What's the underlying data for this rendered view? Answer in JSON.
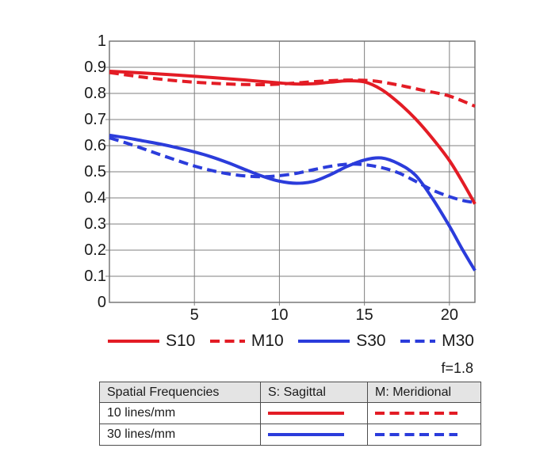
{
  "chart_data": {
    "type": "line",
    "title": "",
    "xlabel": "",
    "ylabel": "",
    "xlim": [
      0,
      21.5
    ],
    "ylim": [
      0,
      1
    ],
    "grid": true,
    "x_ticks": [
      {
        "value": 5,
        "label": "5"
      },
      {
        "value": 10,
        "label": "10"
      },
      {
        "value": 15,
        "label": "15"
      },
      {
        "value": 20,
        "label": "20"
      }
    ],
    "y_ticks": [
      {
        "value": 0,
        "label": "0"
      },
      {
        "value": 0.1,
        "label": "0.1"
      },
      {
        "value": 0.2,
        "label": "0.2"
      },
      {
        "value": 0.3,
        "label": "0.3"
      },
      {
        "value": 0.4,
        "label": "0.4"
      },
      {
        "value": 0.5,
        "label": "0.5"
      },
      {
        "value": 0.6,
        "label": "0.6"
      },
      {
        "value": 0.7,
        "label": "0.7"
      },
      {
        "value": 0.8,
        "label": "0.8"
      },
      {
        "value": 0.9,
        "label": "0.9"
      },
      {
        "value": 1,
        "label": "1"
      }
    ],
    "series": [
      {
        "name": "S10",
        "color": "#e31c25",
        "style": "solid",
        "points": [
          [
            0,
            0.885
          ],
          [
            2,
            0.878
          ],
          [
            4,
            0.87
          ],
          [
            6,
            0.861
          ],
          [
            8,
            0.851
          ],
          [
            10,
            0.84
          ],
          [
            11,
            0.836
          ],
          [
            12,
            0.837
          ],
          [
            13,
            0.843
          ],
          [
            14,
            0.848
          ],
          [
            15,
            0.844
          ],
          [
            16,
            0.815
          ],
          [
            17,
            0.765
          ],
          [
            18,
            0.703
          ],
          [
            19,
            0.628
          ],
          [
            20,
            0.543
          ],
          [
            20.8,
            0.458
          ],
          [
            21.5,
            0.377
          ]
        ]
      },
      {
        "name": "M10",
        "color": "#e31c25",
        "style": "dashed",
        "points": [
          [
            0,
            0.88
          ],
          [
            2,
            0.862
          ],
          [
            4,
            0.848
          ],
          [
            6,
            0.839
          ],
          [
            8,
            0.834
          ],
          [
            9.5,
            0.834
          ],
          [
            11,
            0.84
          ],
          [
            12.5,
            0.847
          ],
          [
            14,
            0.851
          ],
          [
            15.5,
            0.848
          ],
          [
            17,
            0.832
          ],
          [
            18.5,
            0.811
          ],
          [
            20,
            0.79
          ],
          [
            21.5,
            0.751
          ]
        ]
      },
      {
        "name": "S30",
        "color": "#2b3cdb",
        "style": "solid",
        "points": [
          [
            0,
            0.64
          ],
          [
            1,
            0.63
          ],
          [
            2,
            0.618
          ],
          [
            3,
            0.606
          ],
          [
            4,
            0.592
          ],
          [
            5,
            0.576
          ],
          [
            6,
            0.557
          ],
          [
            7,
            0.534
          ],
          [
            8,
            0.508
          ],
          [
            9,
            0.483
          ],
          [
            10,
            0.464
          ],
          [
            11,
            0.456
          ],
          [
            12,
            0.463
          ],
          [
            13,
            0.489
          ],
          [
            14,
            0.521
          ],
          [
            15,
            0.545
          ],
          [
            16,
            0.553
          ],
          [
            17,
            0.531
          ],
          [
            18,
            0.487
          ],
          [
            19,
            0.398
          ],
          [
            20,
            0.292
          ],
          [
            20.7,
            0.21
          ],
          [
            21.5,
            0.122
          ]
        ]
      },
      {
        "name": "M30",
        "color": "#2b3cdb",
        "style": "dashed",
        "points": [
          [
            0,
            0.63
          ],
          [
            1,
            0.61
          ],
          [
            2,
            0.588
          ],
          [
            3,
            0.565
          ],
          [
            4,
            0.543
          ],
          [
            5,
            0.522
          ],
          [
            6,
            0.505
          ],
          [
            7,
            0.492
          ],
          [
            8,
            0.484
          ],
          [
            9,
            0.481
          ],
          [
            10,
            0.485
          ],
          [
            11,
            0.494
          ],
          [
            12,
            0.508
          ],
          [
            13,
            0.521
          ],
          [
            14,
            0.529
          ],
          [
            15,
            0.527
          ],
          [
            16,
            0.516
          ],
          [
            17,
            0.496
          ],
          [
            18,
            0.464
          ],
          [
            19,
            0.43
          ],
          [
            20,
            0.405
          ],
          [
            20.8,
            0.39
          ],
          [
            21.5,
            0.382
          ]
        ]
      }
    ]
  },
  "legend": {
    "items": [
      {
        "label": "S10",
        "color": "#e31c25",
        "style": "solid"
      },
      {
        "label": "M10",
        "color": "#e31c25",
        "style": "dashed"
      },
      {
        "label": "S30",
        "color": "#2b3cdb",
        "style": "solid"
      },
      {
        "label": "M30",
        "color": "#2b3cdb",
        "style": "dashed"
      }
    ]
  },
  "aperture": {
    "label": "f=1.8"
  },
  "table": {
    "headers": [
      "Spatial Frequencies",
      "S: Sagittal",
      "M: Meridional"
    ],
    "rows": [
      {
        "label": "10 lines/mm",
        "sagittal": {
          "color": "#e31c25",
          "style": "solid"
        },
        "meridional": {
          "color": "#e31c25",
          "style": "dashed"
        }
      },
      {
        "label": "30 lines/mm",
        "sagittal": {
          "color": "#2b3cdb",
          "style": "solid"
        },
        "meridional": {
          "color": "#2b3cdb",
          "style": "dashed"
        }
      }
    ]
  },
  "style": {
    "grid_color": "#7f7f7f",
    "text_color": "#1a1a1a",
    "table_border_color": "#4d4d4d",
    "table_header_bg": "#e4e4e4"
  }
}
